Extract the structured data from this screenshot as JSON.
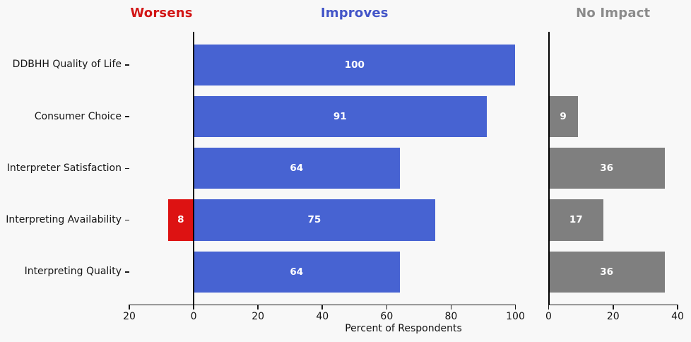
{
  "figure": {
    "background": "#f8f8f8",
    "text_color": "#111111"
  },
  "headers": [
    {
      "label": "Worsens",
      "color": "#d21616"
    },
    {
      "label": "Improves",
      "color": "#4355c8"
    },
    {
      "label": "No Impact",
      "color": "#8b8b8b"
    }
  ],
  "chart_data": {
    "type": "bar",
    "orientation": "horizontal",
    "title": "",
    "xlabel": "Percent of Respondents",
    "categories": [
      "DDBHH Quality of Life",
      "Consumer Choice",
      "Interpreter Satisfaction",
      "Interpreting Availability",
      "Interpreting Quality"
    ],
    "series": [
      {
        "name": "Worsens",
        "panel": "left",
        "direction": "left",
        "color": "#dd1212",
        "values": [
          null,
          null,
          null,
          8,
          null
        ]
      },
      {
        "name": "Improves",
        "panel": "left",
        "direction": "right",
        "color": "#4763d2",
        "values": [
          100,
          91,
          64,
          75,
          64
        ]
      },
      {
        "name": "No Impact",
        "panel": "right",
        "direction": "right",
        "color": "#7f7f7f",
        "values": [
          null,
          9,
          36,
          17,
          36
        ]
      }
    ],
    "value_labels": true,
    "value_label_color": "#ffffff",
    "grid": false,
    "legend": "none",
    "panels": {
      "left": {
        "xlim": [
          -20,
          100
        ],
        "tick_values": [
          -20,
          0,
          20,
          40,
          60,
          80,
          100
        ],
        "tick_labels": [
          "20",
          "0",
          "20",
          "40",
          "60",
          "80",
          "100"
        ]
      },
      "right": {
        "xlim": [
          0,
          40
        ],
        "tick_values": [
          0,
          20,
          40
        ],
        "tick_labels": [
          "0",
          "20",
          "40"
        ]
      }
    }
  }
}
